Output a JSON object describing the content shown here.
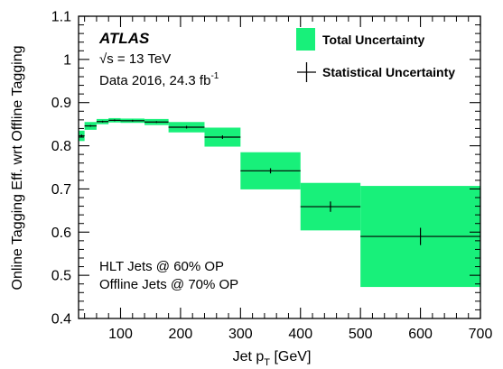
{
  "chart_data": {
    "type": "step",
    "ylabel": "Online Tagging Eff. wrt Offline Tagging",
    "xlabel_main": "Jet p",
    "xlabel_sub": "T",
    "xlabel_unit": "[GeV]",
    "xlim": [
      30,
      700
    ],
    "ylim": [
      0.4,
      1.1
    ],
    "x_ticks": [
      100,
      200,
      300,
      400,
      500,
      600,
      700
    ],
    "y_ticks": [
      0.4,
      0.5,
      0.6,
      0.7,
      0.8,
      0.9,
      1,
      1.1
    ],
    "y_tick_labels": [
      "0.4",
      "0.5",
      "0.6",
      "0.7",
      "0.8",
      "0.9",
      "1",
      "1.1"
    ],
    "bins": [
      {
        "x_low": 30,
        "x_high": 40,
        "value": 0.823,
        "total_err": 0.012,
        "stat_err": 0.003
      },
      {
        "x_low": 40,
        "x_high": 60,
        "value": 0.846,
        "total_err": 0.009,
        "stat_err": 0.002
      },
      {
        "x_low": 60,
        "x_high": 80,
        "value": 0.856,
        "total_err": 0.006,
        "stat_err": 0.002
      },
      {
        "x_low": 80,
        "x_high": 100,
        "value": 0.859,
        "total_err": 0.005,
        "stat_err": 0.002
      },
      {
        "x_low": 100,
        "x_high": 140,
        "value": 0.858,
        "total_err": 0.005,
        "stat_err": 0.002
      },
      {
        "x_low": 140,
        "x_high": 180,
        "value": 0.855,
        "total_err": 0.007,
        "stat_err": 0.002
      },
      {
        "x_low": 180,
        "x_high": 240,
        "value": 0.843,
        "total_err": 0.012,
        "stat_err": 0.003
      },
      {
        "x_low": 240,
        "x_high": 300,
        "value": 0.82,
        "total_err": 0.022,
        "stat_err": 0.004
      },
      {
        "x_low": 300,
        "x_high": 400,
        "value": 0.742,
        "total_err": 0.043,
        "stat_err": 0.006
      },
      {
        "x_low": 400,
        "x_high": 500,
        "value": 0.659,
        "total_err": 0.055,
        "stat_err": 0.012
      },
      {
        "x_low": 500,
        "x_high": 700,
        "value": 0.59,
        "total_err": 0.117,
        "stat_err": 0.02
      }
    ],
    "legend": {
      "placement": "top-right",
      "entries": [
        {
          "label": "Total Uncertainty",
          "kind": "band"
        },
        {
          "label": "Statistical Uncertainty",
          "kind": "errorbar"
        }
      ]
    },
    "annotations": {
      "experiment": "ATLAS",
      "energy_sqrt": "√s",
      "energy_rest": " = 13 TeV",
      "lumi_main": "Data 2016, 24.3 fb",
      "lumi_sup": "-1",
      "note_line1": "HLT Jets @ 60% OP",
      "note_line2": "Offline Jets @ 70% OP"
    },
    "colors": {
      "band": "#18f07a",
      "marker": "#000000",
      "axis": "#000000"
    },
    "grid": false
  }
}
